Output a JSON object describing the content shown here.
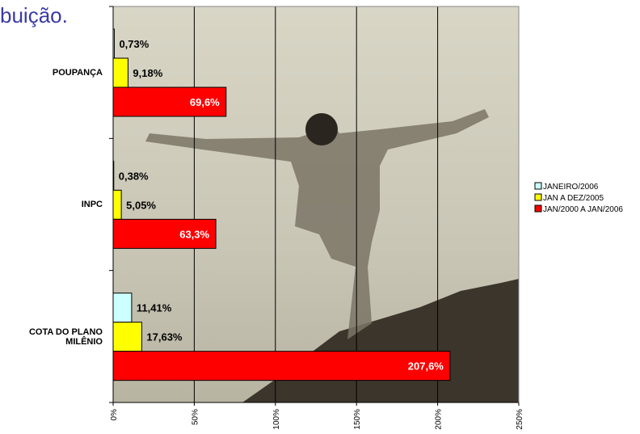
{
  "chart_data": {
    "type": "bar",
    "orientation": "horizontal",
    "title": "buição.",
    "categories": [
      "POUPANÇA",
      "INPC",
      "COTA DO PLANO MILÊNIO"
    ],
    "series": [
      {
        "name": "JANEIRO/2006",
        "color": "#ccffff",
        "values": [
          0.73,
          0.38,
          11.41
        ],
        "value_labels": [
          "0,73%",
          "0,38%",
          "11,41%"
        ]
      },
      {
        "name": "JAN A DEZ/2005",
        "color": "#ffff00",
        "values": [
          9.18,
          5.05,
          17.63
        ],
        "value_labels": [
          "9,18%",
          "5,05%",
          "17,63%"
        ]
      },
      {
        "name": "JAN/2000 A JAN/2006",
        "color": "#ff0000",
        "values": [
          69.6,
          63.3,
          207.6
        ],
        "value_labels": [
          "69,6%",
          "63,3%",
          "207,6%"
        ]
      }
    ],
    "xlim": [
      0,
      250
    ],
    "xticks": [
      {
        "value": 0,
        "label": "0%"
      },
      {
        "value": 50,
        "label": "50%"
      },
      {
        "value": 100,
        "label": "100%"
      },
      {
        "value": 150,
        "label": "150%"
      },
      {
        "value": 200,
        "label": "200%"
      },
      {
        "value": 250,
        "label": "250%"
      }
    ],
    "grid": true,
    "legend": "right"
  }
}
